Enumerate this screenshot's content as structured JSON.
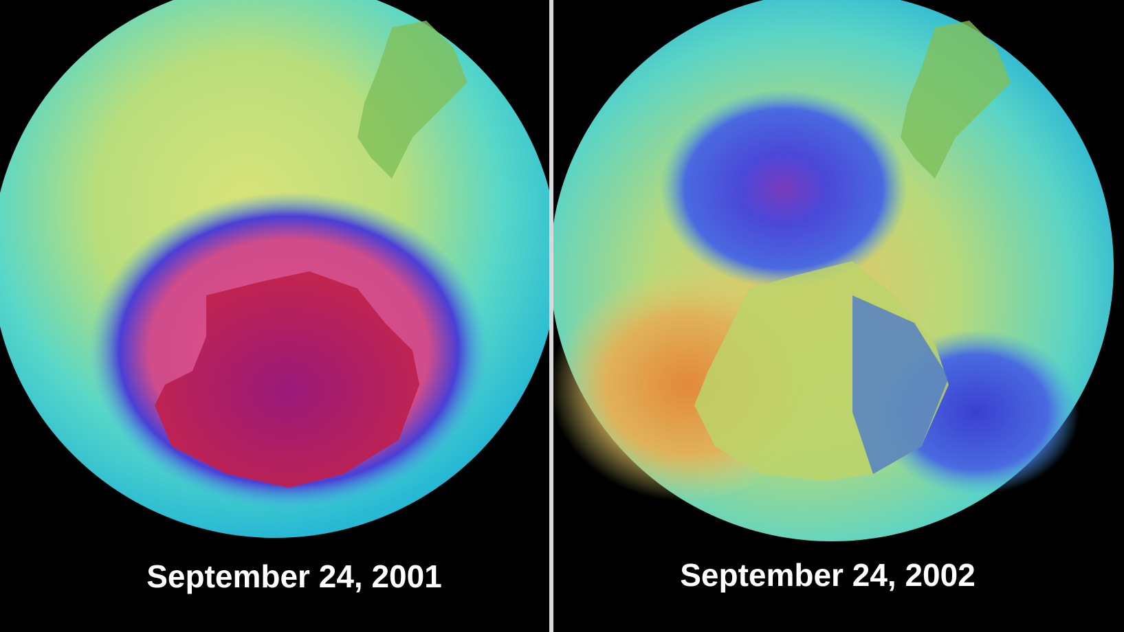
{
  "panels": [
    {
      "caption": "September 24, 2001"
    },
    {
      "caption": "September 24, 2002"
    }
  ]
}
